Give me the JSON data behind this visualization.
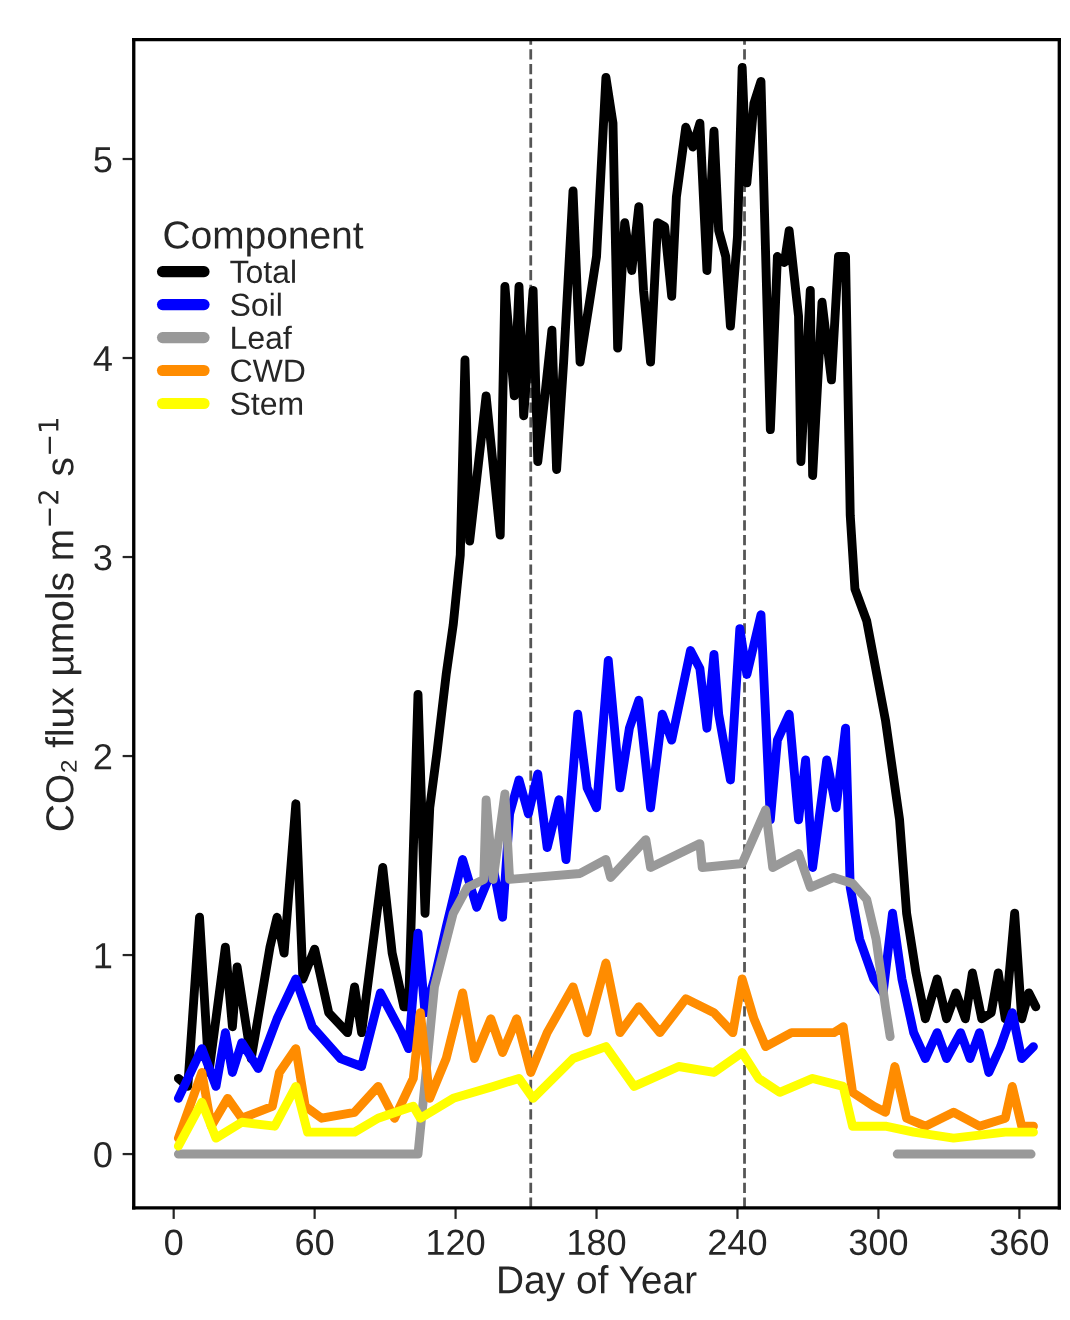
{
  "chart_data": {
    "type": "line",
    "xlabel": "Day of Year",
    "ylabel": "CO₂ flux µmols m$^{−2}$ s$^{−1}$",
    "legend_title": "Component",
    "legend": "top left",
    "grid": false,
    "line_style": "solid",
    "xlim": [
      -17,
      377
    ],
    "xticks": [
      0,
      60,
      120,
      180,
      240,
      300,
      360
    ],
    "ylim": [
      -0.27,
      5.6
    ],
    "yticks": [
      0,
      1,
      2,
      3,
      4,
      5
    ],
    "ref_lines": [
      {
        "axis": "x",
        "value": 152,
        "line_style": "dashed",
        "color": "#555555"
      },
      {
        "axis": "x",
        "value": 243,
        "line_style": "dashed",
        "color": "#555555"
      }
    ],
    "series": [
      {
        "name": "Total",
        "color": "#000000",
        "x": [
          2,
          6,
          11,
          15,
          22,
          25,
          27,
          33,
          41,
          44,
          47,
          52,
          55,
          60,
          66,
          74,
          77,
          80,
          89,
          93,
          98,
          100,
          104,
          107,
          109,
          112,
          116,
          119,
          122,
          124,
          126,
          133,
          139,
          141,
          145,
          147,
          149,
          153,
          155,
          161,
          163,
          166,
          170,
          173,
          177,
          180,
          184,
          187,
          189,
          192,
          195,
          198,
          200,
          203,
          206,
          209,
          212,
          214,
          218,
          221,
          224,
          227,
          230,
          232,
          235,
          237,
          240,
          242,
          244,
          247,
          250,
          254,
          257,
          260,
          262,
          266,
          267,
          271,
          272,
          276,
          280,
          283,
          286,
          288,
          290,
          295,
          303,
          309,
          312,
          316,
          320,
          325,
          329,
          333,
          337,
          340,
          344,
          348,
          351,
          354,
          358,
          361,
          364,
          367
        ],
        "values": [
          0.38,
          0.34,
          1.19,
          0.41,
          1.04,
          0.64,
          0.94,
          0.48,
          1.04,
          1.19,
          1.01,
          1.76,
          0.88,
          1.03,
          0.71,
          0.61,
          0.84,
          0.61,
          1.44,
          1.01,
          0.74,
          0.74,
          2.31,
          1.21,
          1.74,
          2.01,
          2.41,
          2.66,
          3.01,
          3.99,
          3.08,
          3.81,
          3.11,
          4.36,
          3.81,
          4.36,
          3.71,
          4.34,
          3.48,
          4.14,
          3.44,
          3.98,
          4.84,
          3.98,
          4.28,
          4.51,
          5.41,
          5.18,
          4.05,
          4.68,
          4.44,
          4.76,
          4.34,
          3.98,
          4.68,
          4.66,
          4.31,
          4.81,
          5.16,
          5.06,
          5.18,
          4.44,
          5.14,
          4.64,
          4.51,
          4.16,
          4.61,
          5.46,
          4.88,
          5.28,
          5.39,
          3.64,
          4.51,
          4.48,
          4.64,
          4.21,
          3.48,
          4.34,
          3.41,
          4.28,
          3.89,
          4.51,
          4.51,
          3.21,
          2.84,
          2.68,
          2.18,
          1.68,
          1.21,
          0.91,
          0.68,
          0.88,
          0.68,
          0.81,
          0.68,
          0.91,
          0.68,
          0.71,
          0.91,
          0.68,
          1.21,
          0.68,
          0.81,
          0.74
        ]
      },
      {
        "name": "Soil",
        "color": "#0000ff",
        "x": [
          2,
          12,
          18,
          22,
          25,
          29,
          36,
          44,
          52,
          59,
          71,
          80,
          88,
          97,
          100,
          104,
          107,
          111,
          116,
          123,
          129,
          136,
          140,
          143,
          147,
          151,
          155,
          159,
          164,
          167,
          172,
          176,
          180,
          185,
          190,
          194,
          198,
          203,
          208,
          212,
          220,
          224,
          227,
          230,
          232,
          237,
          241,
          244,
          250,
          254,
          257,
          262,
          266,
          269,
          272,
          278,
          282,
          286,
          288,
          292,
          298,
          302,
          306,
          310,
          315,
          320,
          325,
          329,
          335,
          339,
          343,
          347,
          352,
          357,
          361,
          366
        ],
        "values": [
          0.28,
          0.53,
          0.34,
          0.61,
          0.41,
          0.56,
          0.43,
          0.68,
          0.88,
          0.64,
          0.48,
          0.44,
          0.81,
          0.61,
          0.53,
          1.11,
          0.71,
          0.88,
          1.14,
          1.48,
          1.24,
          1.44,
          1.19,
          1.71,
          1.88,
          1.71,
          1.91,
          1.54,
          1.78,
          1.48,
          2.21,
          1.84,
          1.74,
          2.48,
          1.84,
          2.14,
          2.28,
          1.74,
          2.21,
          2.08,
          2.53,
          2.44,
          2.14,
          2.51,
          2.21,
          1.88,
          2.64,
          2.41,
          2.71,
          1.68,
          2.08,
          2.21,
          1.68,
          1.98,
          1.44,
          1.98,
          1.74,
          2.14,
          1.34,
          1.08,
          0.88,
          0.81,
          1.21,
          0.88,
          0.61,
          0.48,
          0.61,
          0.48,
          0.61,
          0.48,
          0.61,
          0.41,
          0.54,
          0.71,
          0.48,
          0.54
        ]
      },
      {
        "name": "Leaf",
        "color": "#999999",
        "x": [
          2,
          104,
          111,
          119,
          125,
          132,
          133,
          136,
          141,
          143,
          173,
          184,
          186,
          201,
          203,
          224,
          225,
          242,
          252,
          255,
          266,
          271,
          281,
          289,
          295,
          299,
          303,
          305,
          306,
          308,
          365
        ],
        "values": [
          0,
          0,
          0.84,
          1.21,
          1.34,
          1.38,
          1.78,
          1.38,
          1.81,
          1.38,
          1.41,
          1.48,
          1.39,
          1.58,
          1.44,
          1.56,
          1.44,
          1.46,
          1.73,
          1.44,
          1.51,
          1.34,
          1.39,
          1.36,
          1.28,
          1.08,
          0.74,
          0.59,
          null,
          0,
          0
        ]
      },
      {
        "name": "CWD",
        "color": "#ff8c00",
        "x": [
          2,
          12,
          16,
          23,
          29,
          42,
          45,
          52,
          56,
          63,
          77,
          87,
          94,
          102,
          105,
          109,
          116,
          123,
          128,
          135,
          140,
          146,
          152,
          159,
          170,
          176,
          184,
          190,
          198,
          207,
          218,
          230,
          238,
          242,
          247,
          252,
          263,
          271,
          281,
          285,
          289,
          298,
          303,
          307,
          312,
          320,
          332,
          343,
          354,
          357,
          361,
          366
        ],
        "values": [
          0.08,
          0.41,
          0.14,
          0.28,
          0.18,
          0.24,
          0.41,
          0.53,
          0.24,
          0.18,
          0.21,
          0.34,
          0.18,
          0.38,
          0.71,
          0.28,
          0.48,
          0.81,
          0.48,
          0.68,
          0.51,
          0.68,
          0.41,
          0.61,
          0.84,
          0.61,
          0.96,
          0.61,
          0.74,
          0.61,
          0.78,
          0.71,
          0.61,
          0.88,
          0.68,
          0.54,
          0.61,
          0.61,
          0.61,
          0.64,
          0.31,
          0.24,
          0.21,
          0.44,
          0.18,
          0.14,
          0.21,
          0.14,
          0.18,
          0.34,
          0.14,
          0.14
        ]
      },
      {
        "name": "Stem",
        "color": "#ffff00",
        "x": [
          2,
          12,
          18,
          29,
          43,
          52,
          57,
          77,
          87,
          102,
          105,
          119,
          136,
          147,
          153,
          170,
          184,
          196,
          215,
          230,
          242,
          249,
          258,
          272,
          285,
          289,
          303,
          315,
          332,
          354,
          366
        ],
        "values": [
          0.04,
          0.26,
          0.08,
          0.16,
          0.14,
          0.34,
          0.11,
          0.11,
          0.18,
          0.24,
          0.18,
          0.28,
          0.34,
          0.38,
          0.28,
          0.48,
          0.54,
          0.34,
          0.44,
          0.41,
          0.51,
          0.38,
          0.31,
          0.38,
          0.34,
          0.14,
          0.14,
          0.11,
          0.08,
          0.11,
          0.11
        ]
      }
    ]
  }
}
